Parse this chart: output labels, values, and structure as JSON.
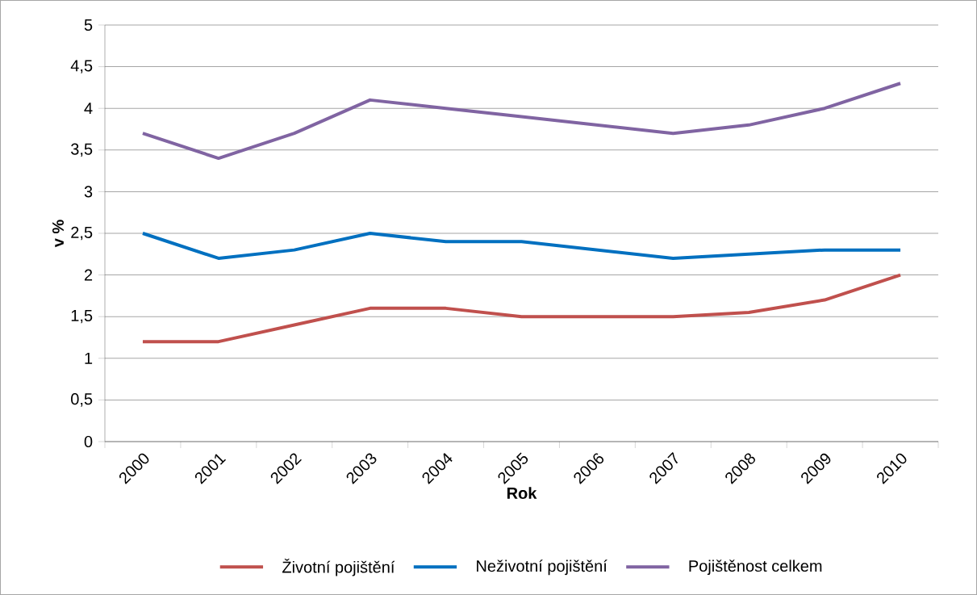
{
  "chart_data": {
    "type": "line",
    "xlabel": "Rok",
    "ylabel": "v %",
    "categories": [
      "2000",
      "2001",
      "2002",
      "2003",
      "2004",
      "2005",
      "2006",
      "2007",
      "2008",
      "2009",
      "2010"
    ],
    "series": [
      {
        "name": "Životní pojištění",
        "color": "#c0504d",
        "values": [
          1.2,
          1.2,
          1.4,
          1.6,
          1.6,
          1.5,
          1.5,
          1.5,
          1.55,
          1.7,
          2.0
        ]
      },
      {
        "name": "Neživotní pojištění",
        "color": "#0070c0",
        "values": [
          2.5,
          2.2,
          2.3,
          2.5,
          2.4,
          2.4,
          2.3,
          2.2,
          2.25,
          2.3,
          2.3
        ]
      },
      {
        "name": "Pojištěnost celkem",
        "color": "#8064a2",
        "values": [
          3.7,
          3.4,
          3.7,
          4.1,
          4.0,
          3.9,
          3.8,
          3.7,
          3.8,
          4.0,
          4.3
        ]
      }
    ],
    "ylim": [
      0,
      5
    ],
    "yticks": [
      0,
      {
        "value": 0.5,
        "label": "0,5"
      },
      1,
      {
        "value": 1.5,
        "label": "1,5"
      },
      2,
      {
        "value": 2.5,
        "label": "2,5"
      },
      3,
      {
        "value": 3.5,
        "label": "3,5"
      },
      4,
      {
        "value": 4.5,
        "label": "4,5"
      },
      5
    ],
    "grid": "y",
    "legend": "bottom",
    "marker": "none",
    "line_style": "solid"
  }
}
